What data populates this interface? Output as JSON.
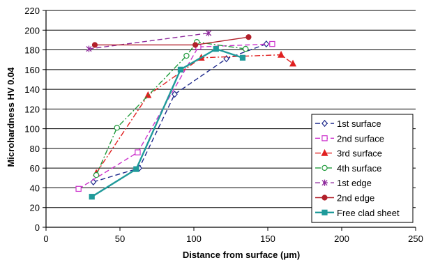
{
  "chart_data": {
    "type": "line",
    "title": "",
    "xlabel": "Distance from surface  (μm)",
    "ylabel": "Microhardness  HV 0.04",
    "xlim": [
      0,
      250
    ],
    "ylim": [
      0,
      220
    ],
    "x_ticks": [
      0,
      50,
      100,
      150,
      200,
      250
    ],
    "y_ticks": [
      0,
      20,
      40,
      60,
      80,
      100,
      120,
      140,
      160,
      180,
      200,
      220
    ],
    "grid": "horizontal",
    "legend_position": "bottom-right",
    "series": [
      {
        "name": "1st surface",
        "color": "#1f2a8c",
        "marker": "diamond-open",
        "line": "dashed",
        "points": [
          [
            32,
            46
          ],
          [
            63,
            60
          ],
          [
            87,
            135
          ],
          [
            122,
            171
          ],
          [
            149,
            186
          ]
        ]
      },
      {
        "name": "2nd surface",
        "color": "#cc33cc",
        "marker": "square-open",
        "line": "dashed",
        "points": [
          [
            22,
            39
          ],
          [
            62,
            76
          ],
          [
            103,
            183
          ],
          [
            153,
            186
          ]
        ]
      },
      {
        "name": "3rd surface",
        "color": "#e02020",
        "marker": "triangle-filled",
        "line": "dashdot",
        "points": [
          [
            34,
            55
          ],
          [
            69,
            134
          ],
          [
            105,
            172
          ],
          [
            159,
            175
          ],
          [
            167,
            166
          ]
        ]
      },
      {
        "name": "4th surface",
        "color": "#1e9a3a",
        "marker": "circle-open",
        "line": "dashdot",
        "points": [
          [
            34,
            53
          ],
          [
            48,
            101
          ],
          [
            95,
            174
          ],
          [
            102,
            188
          ],
          [
            135,
            181
          ]
        ]
      },
      {
        "name": "1st edge",
        "color": "#8e2a9c",
        "marker": "star",
        "line": "dashed",
        "points": [
          [
            29,
            181
          ],
          [
            110,
            197
          ]
        ]
      },
      {
        "name": "2nd edge",
        "color": "#b2202a",
        "marker": "circle-filled",
        "line": "solid",
        "points": [
          [
            33,
            185
          ],
          [
            101,
            185
          ],
          [
            137,
            193
          ]
        ]
      },
      {
        "name": "Free clad sheet",
        "color": "#1f9a9a",
        "marker": "square-filled",
        "line": "solid-thick",
        "points": [
          [
            31,
            31
          ],
          [
            61,
            59
          ],
          [
            91,
            160
          ],
          [
            115,
            181
          ],
          [
            133,
            172
          ]
        ]
      }
    ]
  }
}
